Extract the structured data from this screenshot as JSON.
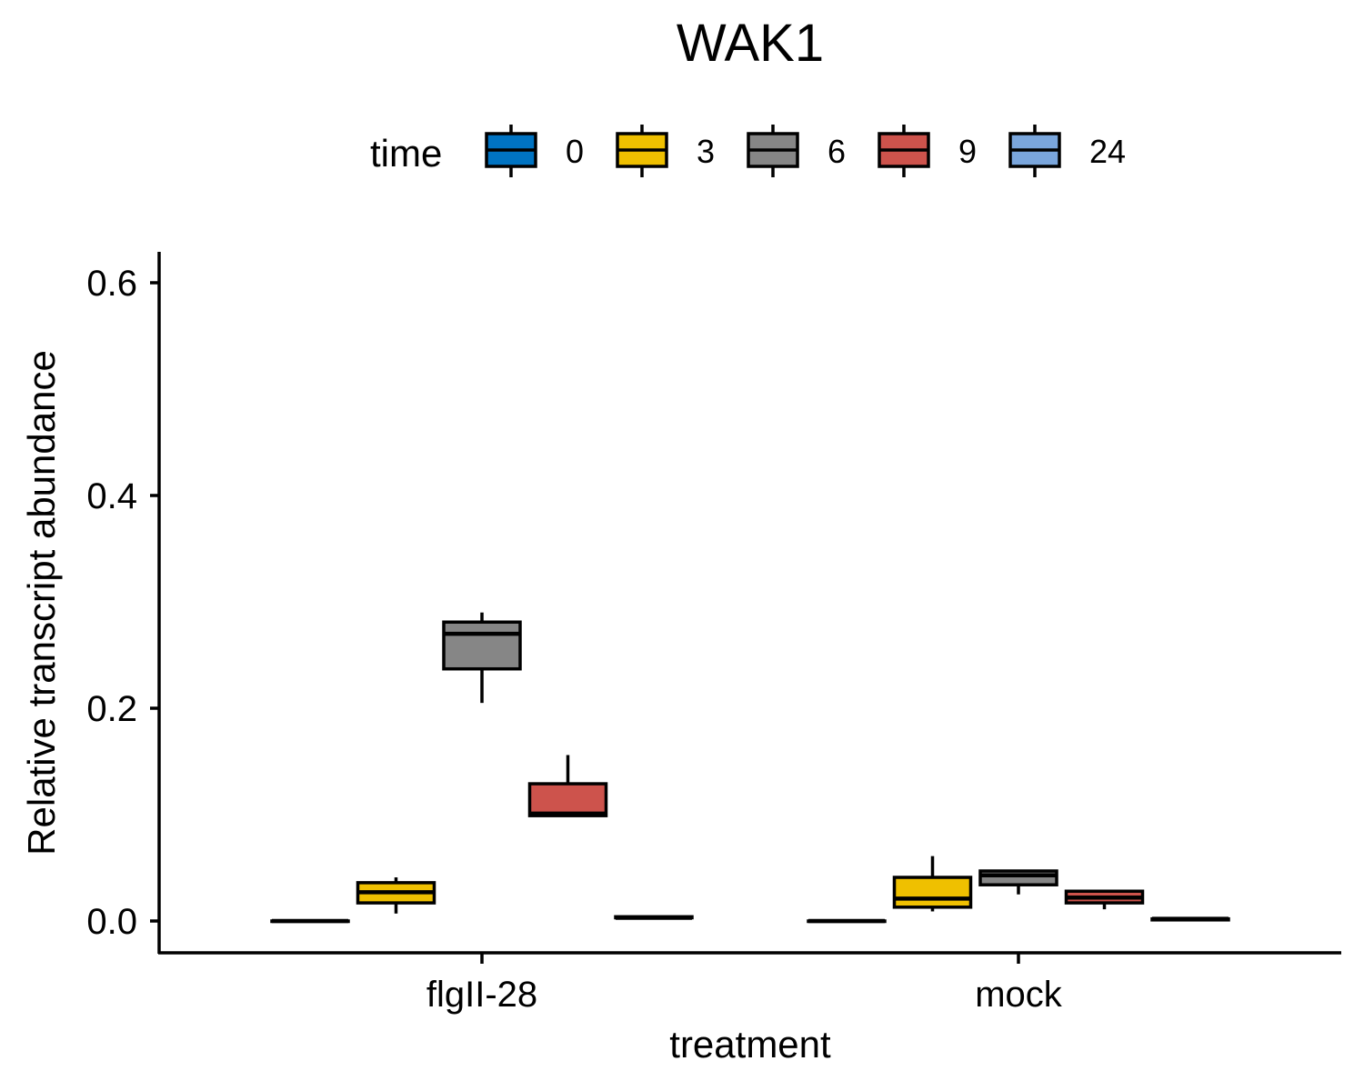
{
  "chart_data": {
    "type": "boxplot",
    "title": "WAK1",
    "xlabel": "treatment",
    "ylabel": "Relative transcript abundance",
    "ylim": [
      -0.03,
      0.63
    ],
    "yticks": [
      0.0,
      0.2,
      0.4,
      0.6
    ],
    "ytick_labels": [
      "0.0",
      "0.2",
      "0.4",
      "0.6"
    ],
    "categories": [
      "flgII-28",
      "mock"
    ],
    "legend": {
      "title": "time",
      "position": "top"
    },
    "series": [
      {
        "name": "0",
        "color": "#0073C2",
        "boxes": [
          {
            "min": 0.0,
            "q1": 0.0,
            "median": 0.0,
            "q3": 0.0,
            "max": 0.0
          },
          {
            "min": 0.0,
            "q1": 0.0,
            "median": 0.0,
            "q3": 0.0,
            "max": 0.0
          }
        ]
      },
      {
        "name": "3",
        "color": "#EFC000",
        "boxes": [
          {
            "min": 0.007,
            "q1": 0.017,
            "median": 0.027,
            "q3": 0.036,
            "max": 0.041
          },
          {
            "min": 0.009,
            "q1": 0.013,
            "median": 0.021,
            "q3": 0.041,
            "max": 0.061
          }
        ]
      },
      {
        "name": "6",
        "color": "#868686",
        "boxes": [
          {
            "min": 0.205,
            "q1": 0.237,
            "median": 0.27,
            "q3": 0.281,
            "max": 0.29
          },
          {
            "min": 0.025,
            "q1": 0.034,
            "median": 0.043,
            "q3": 0.047,
            "max": 0.048
          }
        ]
      },
      {
        "name": "9",
        "color": "#CD534C",
        "boxes": [
          {
            "min": 0.099,
            "q1": 0.099,
            "median": 0.101,
            "q3": 0.129,
            "max": 0.156
          },
          {
            "min": 0.011,
            "q1": 0.017,
            "median": 0.022,
            "q3": 0.028,
            "max": 0.029
          }
        ]
      },
      {
        "name": "24",
        "color": "#7AA6DC",
        "boxes": [
          {
            "min": 0.003,
            "q1": 0.003,
            "median": 0.003,
            "q3": 0.004,
            "max": 0.004
          },
          {
            "min": 0.001,
            "q1": 0.001,
            "median": 0.002,
            "q3": 0.002,
            "max": 0.002
          }
        ]
      }
    ]
  }
}
